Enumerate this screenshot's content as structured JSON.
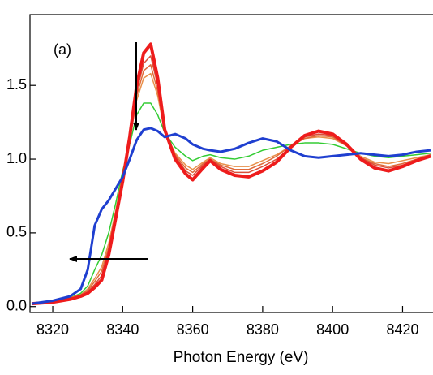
{
  "chart_data": {
    "type": "line",
    "annotation": "(a)",
    "x_label": "Photon Energy (eV)",
    "x": [
      8314,
      8320,
      8325,
      8328,
      8330,
      8332,
      8334,
      8336,
      8338,
      8340,
      8342,
      8344,
      8346,
      8348,
      8350,
      8352,
      8355,
      8358,
      8360,
      8363,
      8365,
      8368,
      8372,
      8376,
      8380,
      8384,
      8388,
      8392,
      8396,
      8400,
      8404,
      8408,
      8412,
      8416,
      8420,
      8424,
      8428
    ],
    "series": [
      {
        "color": "#33cc33",
        "values": [
          0.02,
          0.03,
          0.06,
          0.09,
          0.14,
          0.25,
          0.35,
          0.5,
          0.7,
          0.92,
          1.1,
          1.3,
          1.38,
          1.38,
          1.3,
          1.18,
          1.08,
          1.02,
          0.99,
          1.02,
          1.03,
          1.01,
          1.0,
          1.02,
          1.06,
          1.08,
          1.1,
          1.11,
          1.11,
          1.1,
          1.07,
          1.04,
          1.02,
          1.01,
          1.02,
          1.03,
          1.04
        ]
      },
      {
        "color": "#e8904a",
        "values": [
          0.02,
          0.03,
          0.06,
          0.08,
          0.12,
          0.19,
          0.27,
          0.43,
          0.65,
          0.89,
          1.13,
          1.4,
          1.55,
          1.58,
          1.43,
          1.19,
          1.04,
          0.96,
          0.93,
          0.98,
          1.01,
          0.97,
          0.95,
          0.95,
          0.99,
          1.03,
          1.09,
          1.14,
          1.15,
          1.14,
          1.09,
          1.02,
          0.98,
          0.97,
          0.99,
          1.01,
          1.03
        ]
      },
      {
        "color": "#e06a3a",
        "values": [
          0.02,
          0.03,
          0.05,
          0.08,
          0.11,
          0.17,
          0.24,
          0.4,
          0.64,
          0.87,
          1.13,
          1.43,
          1.6,
          1.64,
          1.46,
          1.19,
          1.03,
          0.94,
          0.91,
          0.97,
          1.0,
          0.96,
          0.93,
          0.93,
          0.97,
          1.02,
          1.09,
          1.14,
          1.16,
          1.15,
          1.09,
          1.01,
          0.97,
          0.95,
          0.97,
          1.0,
          1.03
        ]
      },
      {
        "color": "#d9503a",
        "values": [
          0.02,
          0.03,
          0.05,
          0.07,
          0.1,
          0.15,
          0.21,
          0.38,
          0.62,
          0.86,
          1.14,
          1.46,
          1.65,
          1.7,
          1.5,
          1.2,
          1.02,
          0.92,
          0.89,
          0.96,
          1.0,
          0.95,
          0.91,
          0.91,
          0.95,
          1.0,
          1.08,
          1.15,
          1.17,
          1.16,
          1.09,
          1.01,
          0.96,
          0.94,
          0.96,
          0.99,
          1.02
        ]
      },
      {
        "color": "#ee1c1c",
        "width": 4,
        "values": [
          0.02,
          0.03,
          0.05,
          0.07,
          0.09,
          0.13,
          0.18,
          0.35,
          0.6,
          0.85,
          1.15,
          1.5,
          1.72,
          1.78,
          1.55,
          1.2,
          1.0,
          0.9,
          0.86,
          0.94,
          0.99,
          0.93,
          0.89,
          0.88,
          0.92,
          0.98,
          1.08,
          1.16,
          1.19,
          1.17,
          1.1,
          1.0,
          0.94,
          0.92,
          0.95,
          0.99,
          1.02
        ]
      },
      {
        "color": "#1f3fd0",
        "width": 3,
        "values": [
          0.02,
          0.04,
          0.07,
          0.12,
          0.25,
          0.55,
          0.66,
          0.72,
          0.8,
          0.88,
          1.0,
          1.13,
          1.2,
          1.21,
          1.19,
          1.15,
          1.17,
          1.14,
          1.1,
          1.07,
          1.06,
          1.05,
          1.07,
          1.11,
          1.14,
          1.12,
          1.06,
          1.02,
          1.01,
          1.02,
          1.03,
          1.04,
          1.03,
          1.02,
          1.03,
          1.05,
          1.06
        ]
      }
    ],
    "xlim": [
      8313.5,
      8428.7
    ],
    "xticks": [
      8320,
      8340,
      8360,
      8380,
      8400,
      8420
    ],
    "ylim": [
      -0.04,
      1.98
    ],
    "yticks": [
      {
        "value": 0,
        "label": "0.0"
      },
      0.5,
      {
        "value": 1,
        "label": "1.0"
      },
      1.5
    ]
  }
}
